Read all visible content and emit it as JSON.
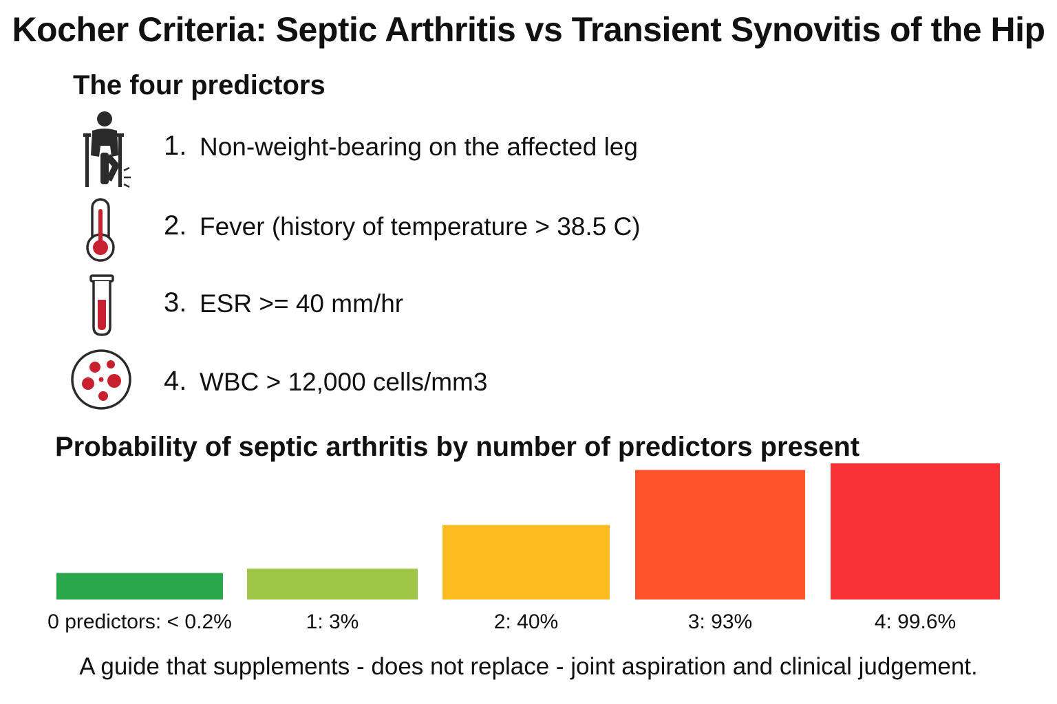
{
  "title": "Kocher Criteria: Septic Arthritis vs Transient Synovitis of the Hip",
  "predictors_heading": "The four predictors",
  "predictors": [
    {
      "number": "1.",
      "label": "Non-weight-bearing on the affected leg",
      "icon": "person-on-crutches-icon"
    },
    {
      "number": "2.",
      "label": "Fever (history of temperature > 38.5 C)",
      "icon": "thermometer-icon"
    },
    {
      "number": "3.",
      "label": "ESR >= 40 mm/hr",
      "icon": "test-tube-icon"
    },
    {
      "number": "4.",
      "label": "WBC > 12,000 cells/mm3",
      "icon": "blood-cells-icon"
    }
  ],
  "colors": {
    "icon_dark": "#2b2b2b",
    "icon_red": "#c8202e"
  },
  "chart_data": {
    "type": "bar",
    "title": "Probability of septic arthritis by number of predictors present",
    "categories": [
      "0 predictors: < 0.2%",
      "1: 3%",
      "2: 40%",
      "3: 93%",
      "4: 99.6%"
    ],
    "values": [
      0.2,
      3,
      40,
      93,
      99.6
    ],
    "colors": [
      "#2aa74a",
      "#9fc646",
      "#fcbc1f",
      "#ff532c",
      "#f93335"
    ],
    "xlabel": "",
    "ylabel": "",
    "grid": false
  },
  "footer": "A guide that supplements - does not replace - joint aspiration and clinical judgement."
}
